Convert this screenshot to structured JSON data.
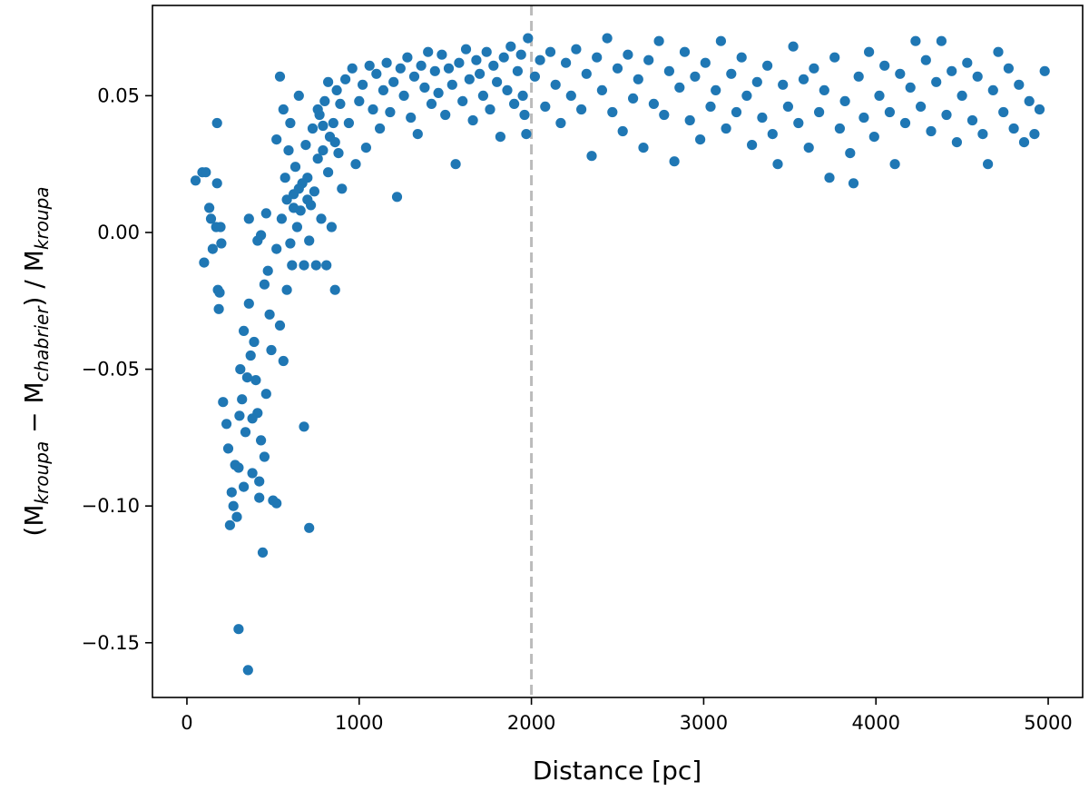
{
  "chart_data": {
    "type": "scatter",
    "title": "",
    "xlabel": "Distance [pc]",
    "ylabel": {
      "open": "(M",
      "sub1": "kroupa",
      "minus": " − M",
      "sub2": "chabrier",
      "mid": ") / M",
      "sub3": "kroupa"
    },
    "xlim": [
      -200,
      5200
    ],
    "ylim": [
      -0.17,
      0.083
    ],
    "xticks": [
      0,
      1000,
      2000,
      3000,
      4000,
      5000
    ],
    "xtick_labels": [
      "0",
      "1000",
      "2000",
      "3000",
      "4000",
      "5000"
    ],
    "yticks": [
      -0.15,
      -0.1,
      -0.05,
      0.0,
      0.05
    ],
    "ytick_labels": [
      "−0.15",
      "−0.10",
      "−0.05",
      "0.00",
      "0.05"
    ],
    "grid": false,
    "marker_color": "#1f77b4",
    "reference_line": {
      "x": 2000,
      "style": "dashed",
      "color": "#bbbbbb"
    },
    "series": [
      {
        "values": [
          [
            50,
            0.019
          ],
          [
            90,
            0.022
          ],
          [
            110,
            0.022
          ],
          [
            100,
            -0.011
          ],
          [
            130,
            0.009
          ],
          [
            140,
            0.005
          ],
          [
            150,
            -0.006
          ],
          [
            170,
            0.002
          ],
          [
            175,
            0.04
          ],
          [
            180,
            -0.021
          ],
          [
            185,
            -0.028
          ],
          [
            190,
            -0.022
          ],
          [
            195,
            0.002
          ],
          [
            200,
            -0.004
          ],
          [
            175,
            0.018
          ],
          [
            210,
            -0.062
          ],
          [
            230,
            -0.07
          ],
          [
            240,
            -0.079
          ],
          [
            250,
            -0.107
          ],
          [
            260,
            -0.095
          ],
          [
            270,
            -0.1
          ],
          [
            280,
            -0.085
          ],
          [
            290,
            -0.104
          ],
          [
            300,
            -0.145
          ],
          [
            305,
            -0.067
          ],
          [
            310,
            -0.05
          ],
          [
            320,
            -0.061
          ],
          [
            330,
            -0.036
          ],
          [
            340,
            -0.073
          ],
          [
            350,
            -0.053
          ],
          [
            355,
            -0.16
          ],
          [
            360,
            -0.026
          ],
          [
            370,
            -0.045
          ],
          [
            380,
            -0.088
          ],
          [
            390,
            -0.04
          ],
          [
            400,
            -0.054
          ],
          [
            410,
            -0.066
          ],
          [
            420,
            -0.097
          ],
          [
            430,
            -0.076
          ],
          [
            440,
            -0.117
          ],
          [
            450,
            -0.082
          ],
          [
            460,
            -0.059
          ],
          [
            470,
            -0.014
          ],
          [
            480,
            -0.03
          ],
          [
            490,
            -0.043
          ],
          [
            500,
            -0.098
          ],
          [
            520,
            -0.099
          ],
          [
            540,
            -0.034
          ],
          [
            560,
            -0.047
          ],
          [
            360,
            0.005
          ],
          [
            410,
            -0.003
          ],
          [
            300,
            -0.086
          ],
          [
            330,
            -0.093
          ],
          [
            380,
            -0.068
          ],
          [
            420,
            -0.091
          ],
          [
            450,
            -0.019
          ],
          [
            520,
            -0.006
          ],
          [
            580,
            -0.021
          ],
          [
            600,
            -0.004
          ],
          [
            430,
            -0.001
          ],
          [
            460,
            0.007
          ],
          [
            520,
            0.034
          ],
          [
            540,
            0.057
          ],
          [
            550,
            0.005
          ],
          [
            560,
            0.045
          ],
          [
            570,
            0.02
          ],
          [
            580,
            0.012
          ],
          [
            590,
            0.03
          ],
          [
            600,
            0.04
          ],
          [
            610,
            -0.012
          ],
          [
            620,
            0.014
          ],
          [
            630,
            0.024
          ],
          [
            640,
            0.002
          ],
          [
            650,
            0.05
          ],
          [
            660,
            0.008
          ],
          [
            670,
            0.018
          ],
          [
            680,
            -0.012
          ],
          [
            690,
            0.032
          ],
          [
            700,
            0.02
          ],
          [
            710,
            -0.003
          ],
          [
            720,
            0.01
          ],
          [
            730,
            0.038
          ],
          [
            740,
            0.015
          ],
          [
            750,
            -0.012
          ],
          [
            760,
            0.027
          ],
          [
            770,
            0.043
          ],
          [
            780,
            0.005
          ],
          [
            790,
            0.03
          ],
          [
            800,
            0.048
          ],
          [
            810,
            -0.012
          ],
          [
            820,
            0.022
          ],
          [
            830,
            0.035
          ],
          [
            840,
            0.002
          ],
          [
            850,
            0.04
          ],
          [
            860,
            -0.021
          ],
          [
            870,
            0.052
          ],
          [
            880,
            0.029
          ],
          [
            890,
            0.047
          ],
          [
            900,
            0.016
          ],
          [
            680,
            -0.071
          ],
          [
            710,
            -0.108
          ],
          [
            620,
            0.009
          ],
          [
            650,
            0.016
          ],
          [
            700,
            0.012
          ],
          [
            760,
            0.045
          ],
          [
            790,
            0.039
          ],
          [
            820,
            0.055
          ],
          [
            860,
            0.033
          ],
          [
            920,
            0.056
          ],
          [
            940,
            0.04
          ],
          [
            960,
            0.06
          ],
          [
            980,
            0.025
          ],
          [
            1000,
            0.048
          ],
          [
            1020,
            0.054
          ],
          [
            1040,
            0.031
          ],
          [
            1060,
            0.061
          ],
          [
            1080,
            0.045
          ],
          [
            1100,
            0.058
          ],
          [
            1120,
            0.038
          ],
          [
            1140,
            0.052
          ],
          [
            1160,
            0.062
          ],
          [
            1180,
            0.044
          ],
          [
            1200,
            0.055
          ],
          [
            1220,
            0.013
          ],
          [
            1240,
            0.06
          ],
          [
            1260,
            0.05
          ],
          [
            1280,
            0.064
          ],
          [
            1300,
            0.042
          ],
          [
            1320,
            0.057
          ],
          [
            1340,
            0.036
          ],
          [
            1360,
            0.061
          ],
          [
            1380,
            0.053
          ],
          [
            1400,
            0.066
          ],
          [
            1420,
            0.047
          ],
          [
            1440,
            0.059
          ],
          [
            1460,
            0.051
          ],
          [
            1480,
            0.065
          ],
          [
            1500,
            0.043
          ],
          [
            1520,
            0.06
          ],
          [
            1540,
            0.054
          ],
          [
            1560,
            0.025
          ],
          [
            1580,
            0.062
          ],
          [
            1600,
            0.048
          ],
          [
            1620,
            0.067
          ],
          [
            1640,
            0.056
          ],
          [
            1660,
            0.041
          ],
          [
            1680,
            0.063
          ],
          [
            1700,
            0.058
          ],
          [
            1720,
            0.05
          ],
          [
            1740,
            0.066
          ],
          [
            1760,
            0.045
          ],
          [
            1780,
            0.061
          ],
          [
            1800,
            0.055
          ],
          [
            1820,
            0.035
          ],
          [
            1840,
            0.064
          ],
          [
            1860,
            0.052
          ],
          [
            1880,
            0.068
          ],
          [
            1900,
            0.047
          ],
          [
            1920,
            0.059
          ],
          [
            1940,
            0.065
          ],
          [
            1960,
            0.043
          ],
          [
            1980,
            0.071
          ],
          [
            1950,
            0.05
          ],
          [
            1970,
            0.036
          ],
          [
            2020,
            0.057
          ],
          [
            2050,
            0.063
          ],
          [
            2080,
            0.046
          ],
          [
            2110,
            0.066
          ],
          [
            2140,
            0.054
          ],
          [
            2170,
            0.04
          ],
          [
            2200,
            0.062
          ],
          [
            2230,
            0.05
          ],
          [
            2260,
            0.067
          ],
          [
            2290,
            0.045
          ],
          [
            2320,
            0.058
          ],
          [
            2350,
            0.028
          ],
          [
            2380,
            0.064
          ],
          [
            2410,
            0.052
          ],
          [
            2440,
            0.071
          ],
          [
            2470,
            0.044
          ],
          [
            2500,
            0.06
          ],
          [
            2530,
            0.037
          ],
          [
            2560,
            0.065
          ],
          [
            2590,
            0.049
          ],
          [
            2620,
            0.056
          ],
          [
            2650,
            0.031
          ],
          [
            2680,
            0.063
          ],
          [
            2710,
            0.047
          ],
          [
            2740,
            0.07
          ],
          [
            2770,
            0.043
          ],
          [
            2800,
            0.059
          ],
          [
            2830,
            0.026
          ],
          [
            2860,
            0.053
          ],
          [
            2890,
            0.066
          ],
          [
            2920,
            0.041
          ],
          [
            2950,
            0.057
          ],
          [
            2980,
            0.034
          ],
          [
            3010,
            0.062
          ],
          [
            3040,
            0.046
          ],
          [
            3070,
            0.052
          ],
          [
            3100,
            0.07
          ],
          [
            3130,
            0.038
          ],
          [
            3160,
            0.058
          ],
          [
            3190,
            0.044
          ],
          [
            3220,
            0.064
          ],
          [
            3250,
            0.05
          ],
          [
            3280,
            0.032
          ],
          [
            3310,
            0.055
          ],
          [
            3340,
            0.042
          ],
          [
            3370,
            0.061
          ],
          [
            3400,
            0.036
          ],
          [
            3430,
            0.025
          ],
          [
            3460,
            0.054
          ],
          [
            3490,
            0.046
          ],
          [
            3520,
            0.068
          ],
          [
            3550,
            0.04
          ],
          [
            3580,
            0.056
          ],
          [
            3610,
            0.031
          ],
          [
            3640,
            0.06
          ],
          [
            3670,
            0.044
          ],
          [
            3700,
            0.052
          ],
          [
            3730,
            0.02
          ],
          [
            3760,
            0.064
          ],
          [
            3790,
            0.038
          ],
          [
            3820,
            0.048
          ],
          [
            3850,
            0.029
          ],
          [
            3870,
            0.018
          ],
          [
            3900,
            0.057
          ],
          [
            3930,
            0.042
          ],
          [
            3960,
            0.066
          ],
          [
            3990,
            0.035
          ],
          [
            4020,
            0.05
          ],
          [
            4050,
            0.061
          ],
          [
            4080,
            0.044
          ],
          [
            4110,
            0.025
          ],
          [
            4140,
            0.058
          ],
          [
            4170,
            0.04
          ],
          [
            4200,
            0.053
          ],
          [
            4230,
            0.07
          ],
          [
            4260,
            0.046
          ],
          [
            4290,
            0.063
          ],
          [
            4320,
            0.037
          ],
          [
            4350,
            0.055
          ],
          [
            4380,
            0.07
          ],
          [
            4410,
            0.043
          ],
          [
            4440,
            0.059
          ],
          [
            4470,
            0.033
          ],
          [
            4500,
            0.05
          ],
          [
            4530,
            0.062
          ],
          [
            4560,
            0.041
          ],
          [
            4590,
            0.057
          ],
          [
            4620,
            0.036
          ],
          [
            4650,
            0.025
          ],
          [
            4680,
            0.052
          ],
          [
            4710,
            0.066
          ],
          [
            4740,
            0.044
          ],
          [
            4770,
            0.06
          ],
          [
            4800,
            0.038
          ],
          [
            4830,
            0.054
          ],
          [
            4860,
            0.033
          ],
          [
            4890,
            0.048
          ],
          [
            4920,
            0.036
          ],
          [
            4950,
            0.045
          ],
          [
            4980,
            0.059
          ]
        ]
      }
    ]
  }
}
